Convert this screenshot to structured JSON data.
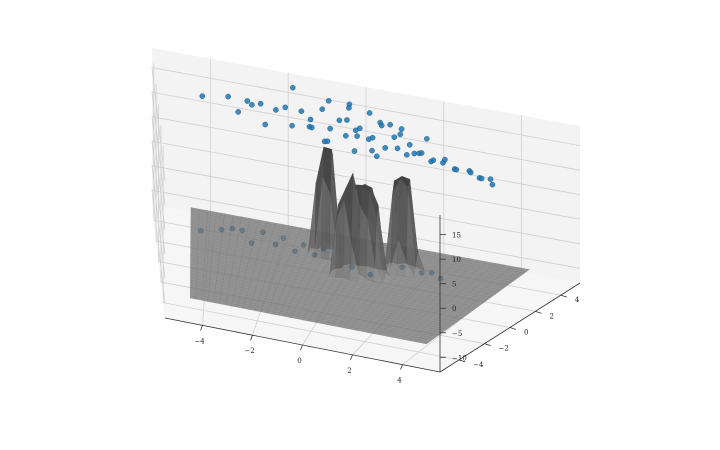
{
  "chart_data": {
    "type": "scatter",
    "projection": "3d",
    "title": "",
    "xlabel": "",
    "ylabel": "",
    "zlabel": "",
    "xlim": [
      -5.5,
      5.5
    ],
    "ylim": [
      -5.5,
      5.5
    ],
    "zlim": [
      -13,
      19
    ],
    "x_ticks": [
      -4,
      -2,
      0,
      2,
      4
    ],
    "y_ticks": [
      -4,
      -2,
      0,
      2,
      4
    ],
    "z_ticks": [
      -10,
      -5,
      0,
      5,
      10,
      15
    ],
    "x_tick_labels": [
      "−4",
      "−2",
      "0",
      "2",
      "4"
    ],
    "y_tick_labels": [
      "−4",
      "−2",
      "0",
      "2",
      "4"
    ],
    "z_tick_labels": [
      "−10",
      "−5",
      "0",
      "5",
      "10",
      "15"
    ],
    "grid": true,
    "colors": {
      "scatter": "#1f77b4",
      "surface": "#555555",
      "pane": "#f2f2f2",
      "grid": "#d0d0d0"
    },
    "surface": {
      "base_z": -10,
      "x_range": [
        -4.5,
        4.5
      ],
      "y_range": [
        -4.5,
        4.5
      ],
      "peaks": [
        {
          "x": -0.6,
          "y": 2.3,
          "width": 0.35,
          "height": 22
        },
        {
          "x": 0.7,
          "y": 1.1,
          "width": 0.55,
          "height": 18
        },
        {
          "x": 1.6,
          "y": 2.2,
          "width": 0.4,
          "height": 19
        },
        {
          "x": 0.2,
          "y": 0.6,
          "width": 0.3,
          "height": 16
        }
      ]
    },
    "series": [
      {
        "role": "upper cloud",
        "points": [
          [
            -4.2,
            4.8,
            12.5
          ],
          [
            -3.5,
            4.2,
            14.6
          ],
          [
            -3.0,
            4.5,
            13.8
          ],
          [
            -2.6,
            3.8,
            15.2
          ],
          [
            -2.2,
            4.0,
            14.1
          ],
          [
            -1.9,
            3.5,
            16.0
          ],
          [
            -1.5,
            3.9,
            15.0
          ],
          [
            -1.2,
            3.2,
            13.6
          ],
          [
            -0.9,
            3.6,
            16.8
          ],
          [
            -0.6,
            3.0,
            14.4
          ],
          [
            -0.4,
            3.4,
            15.6
          ],
          [
            -0.1,
            2.8,
            17.2
          ],
          [
            0.1,
            3.1,
            14.8
          ],
          [
            0.3,
            2.6,
            16.4
          ],
          [
            0.5,
            2.9,
            13.9
          ],
          [
            0.7,
            2.4,
            15.4
          ],
          [
            0.9,
            2.7,
            17.6
          ],
          [
            1.1,
            2.2,
            14.2
          ],
          [
            1.3,
            2.5,
            16.1
          ],
          [
            1.5,
            2.0,
            15.0
          ],
          [
            1.7,
            2.3,
            13.4
          ],
          [
            1.9,
            1.8,
            16.6
          ],
          [
            2.1,
            2.1,
            14.6
          ],
          [
            2.3,
            1.6,
            15.8
          ],
          [
            2.5,
            1.9,
            13.8
          ],
          [
            2.7,
            1.4,
            15.2
          ],
          [
            2.9,
            1.7,
            14.4
          ],
          [
            3.1,
            1.2,
            16.2
          ],
          [
            3.3,
            1.5,
            14.0
          ],
          [
            3.5,
            1.0,
            15.0
          ],
          [
            3.8,
            1.3,
            14.6
          ],
          [
            4.0,
            0.8,
            15.4
          ],
          [
            4.2,
            1.0,
            14.2
          ],
          [
            4.4,
            0.6,
            15.0
          ],
          [
            4.6,
            0.8,
            14.8
          ],
          [
            4.8,
            0.4,
            14.6
          ],
          [
            -1.6,
            2.4,
            14.8
          ],
          [
            -1.0,
            2.1,
            15.8
          ],
          [
            -0.5,
            1.8,
            14.2
          ],
          [
            0.0,
            2.0,
            15.6
          ],
          [
            0.4,
            1.6,
            16.8
          ],
          [
            0.8,
            1.8,
            14.0
          ],
          [
            -0.8,
            4.2,
            17.5
          ],
          [
            -0.2,
            3.9,
            18.2
          ],
          [
            0.4,
            3.6,
            17.8
          ],
          [
            1.0,
            3.4,
            16.6
          ],
          [
            -2.4,
            2.8,
            13.2
          ],
          [
            -1.8,
            4.6,
            18.0
          ],
          [
            -1.3,
            4.3,
            12.8
          ],
          [
            -0.7,
            2.6,
            12.4
          ],
          [
            0.2,
            2.3,
            12.2
          ],
          [
            0.9,
            2.0,
            12.6
          ],
          [
            1.4,
            3.0,
            17.0
          ],
          [
            1.8,
            2.8,
            12.9
          ],
          [
            2.2,
            2.6,
            16.8
          ],
          [
            -2.8,
            3.2,
            15.9
          ],
          [
            -3.2,
            3.6,
            13.1
          ],
          [
            -0.3,
            4.5,
            16.2
          ],
          [
            0.6,
            4.1,
            15.2
          ],
          [
            1.2,
            3.8,
            14.2
          ]
        ]
      },
      {
        "role": "lower cloud",
        "points": [
          [
            -4.2,
            1.8,
            -8.8
          ],
          [
            -3.6,
            1.9,
            -8.0
          ],
          [
            -3.0,
            2.0,
            -7.6
          ],
          [
            -2.4,
            2.0,
            -7.2
          ],
          [
            -1.8,
            1.9,
            -7.4
          ],
          [
            -1.2,
            1.8,
            -7.8
          ],
          [
            -0.6,
            1.7,
            -7.6
          ],
          [
            0.0,
            1.6,
            -7.2
          ],
          [
            0.6,
            1.5,
            -7.0
          ],
          [
            1.2,
            1.4,
            -7.4
          ],
          [
            1.8,
            1.3,
            -7.6
          ],
          [
            2.4,
            1.2,
            -7.8
          ],
          [
            3.0,
            1.1,
            -8.0
          ],
          [
            -2.0,
            1.6,
            -8.4
          ],
          [
            -1.4,
            1.4,
            -8.6
          ],
          [
            -0.8,
            1.2,
            -8.2
          ],
          [
            -0.2,
            1.0,
            -8.0
          ],
          [
            0.4,
            0.8,
            -8.4
          ],
          [
            1.0,
            0.6,
            -8.8
          ],
          [
            -0.4,
            2.2,
            -6.8
          ],
          [
            0.2,
            2.0,
            -6.6
          ],
          [
            0.8,
            1.8,
            -6.8
          ],
          [
            1.4,
            1.6,
            -7.0
          ],
          [
            -3.3,
            2.3,
            -8.2
          ],
          [
            -2.7,
            1.5,
            -8.8
          ],
          [
            2.0,
            1.8,
            -7.2
          ],
          [
            2.6,
            1.6,
            -8.2
          ],
          [
            -1.0,
            2.4,
            -7.0
          ]
        ]
      }
    ]
  }
}
